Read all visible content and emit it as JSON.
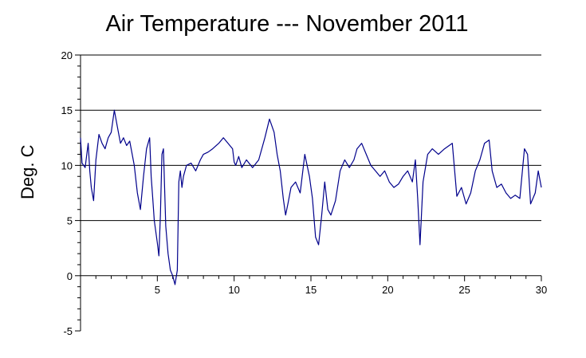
{
  "chart_data": {
    "type": "line",
    "title": "Air Temperature --- November 2011",
    "xlabel": "",
    "ylabel": "Deg. C",
    "xlim": [
      0,
      30
    ],
    "ylim": [
      -5,
      20
    ],
    "x_ticks": [
      5,
      10,
      15,
      20,
      25,
      30
    ],
    "x_tick_labels": [
      "5",
      "10",
      "15",
      "20",
      "25",
      "30"
    ],
    "y_ticks": [
      -5,
      0,
      5,
      10,
      15,
      20
    ],
    "y_tick_labels": [
      "-5",
      "0",
      "5",
      "10",
      "15",
      "20"
    ],
    "grid": "horizontal",
    "line_color": "#00008b",
    "series": [
      {
        "x": [
          0.0,
          0.1,
          0.2,
          0.3,
          0.5,
          0.6,
          0.7,
          0.85,
          1.0,
          1.2,
          1.4,
          1.6,
          1.8,
          2.0,
          2.2,
          2.4,
          2.6,
          2.8,
          3.0,
          3.2,
          3.5,
          3.7,
          3.9,
          4.1,
          4.3,
          4.5,
          4.6,
          4.7,
          4.8,
          5.0,
          5.1,
          5.2,
          5.3,
          5.4,
          5.55,
          5.7,
          5.85,
          6.0,
          6.15,
          6.3,
          6.4,
          6.5,
          6.6,
          6.7,
          6.9,
          7.2,
          7.5,
          7.8,
          8.0,
          8.3,
          8.6,
          9.0,
          9.3,
          9.6,
          9.9,
          10.0,
          10.1,
          10.3,
          10.5,
          10.8,
          11.2,
          11.6,
          12.0,
          12.3,
          12.6,
          12.8,
          13.0,
          13.2,
          13.35,
          13.5,
          13.7,
          14.0,
          14.3,
          14.6,
          14.9,
          15.1,
          15.3,
          15.5,
          15.7,
          15.9,
          16.1,
          16.3,
          16.6,
          16.9,
          17.2,
          17.5,
          17.8,
          18.0,
          18.3,
          18.6,
          18.9,
          19.2,
          19.5,
          19.8,
          20.1,
          20.4,
          20.7,
          21.0,
          21.3,
          21.6,
          21.8,
          21.95,
          22.1,
          22.3,
          22.6,
          22.9,
          23.3,
          23.7,
          24.0,
          24.2,
          24.5,
          24.8,
          25.1,
          25.4,
          25.7,
          26.0,
          26.3,
          26.6,
          26.8,
          27.1,
          27.4,
          27.7,
          28.0,
          28.3,
          28.6,
          28.9,
          29.1,
          29.3,
          29.6,
          29.8,
          30.0
        ],
        "y": [
          12.5,
          10.2,
          10.0,
          9.8,
          12.0,
          9.5,
          8.0,
          6.8,
          10.5,
          12.8,
          12.0,
          11.5,
          12.5,
          13.0,
          15.0,
          13.5,
          12.0,
          12.5,
          11.8,
          12.2,
          10.0,
          7.5,
          6.0,
          9.0,
          11.5,
          12.5,
          9.0,
          7.0,
          5.0,
          3.0,
          1.8,
          5.5,
          11.0,
          11.5,
          4.5,
          2.0,
          0.5,
          0.0,
          -0.8,
          0.5,
          8.5,
          9.5,
          8.0,
          9.0,
          10.0,
          10.2,
          9.5,
          10.5,
          11.0,
          11.2,
          11.5,
          12.0,
          12.5,
          12.0,
          11.5,
          10.3,
          10.0,
          10.8,
          9.8,
          10.5,
          9.8,
          10.5,
          12.5,
          14.2,
          13.0,
          11.0,
          9.5,
          7.0,
          5.5,
          6.5,
          8.0,
          8.5,
          7.5,
          11.0,
          9.0,
          7.0,
          3.5,
          2.8,
          5.5,
          8.5,
          6.0,
          5.5,
          6.8,
          9.5,
          10.5,
          9.8,
          10.5,
          11.5,
          12.0,
          11.0,
          10.0,
          9.5,
          9.0,
          9.5,
          8.5,
          8.0,
          8.3,
          9.0,
          9.5,
          8.5,
          10.5,
          7.0,
          2.8,
          8.5,
          11.0,
          11.5,
          11.0,
          11.5,
          11.8,
          12.0,
          7.2,
          8.0,
          6.5,
          7.5,
          9.5,
          10.5,
          12.0,
          12.3,
          9.5,
          8.0,
          8.3,
          7.5,
          7.0,
          7.3,
          7.0,
          11.5,
          11.0,
          6.5,
          7.5,
          9.5,
          8.0
        ]
      }
    ]
  }
}
